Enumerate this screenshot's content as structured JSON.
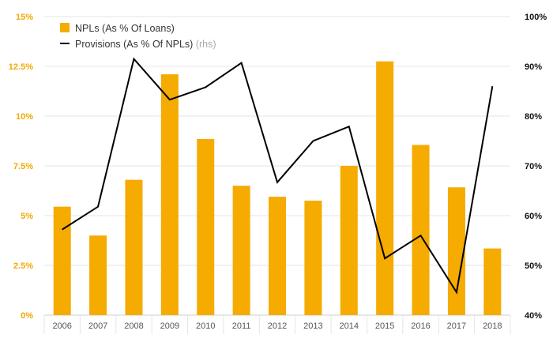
{
  "chart_data": {
    "type": "bar",
    "categories": [
      "2006",
      "2007",
      "2008",
      "2009",
      "2010",
      "2011",
      "2012",
      "2013",
      "2014",
      "2015",
      "2016",
      "2017",
      "2018"
    ],
    "series": [
      {
        "name": "NPLs (As % Of Loans)",
        "type": "bar",
        "axis": "left",
        "color": "#f5ab00",
        "values": [
          5.45,
          4.0,
          6.8,
          12.1,
          8.85,
          6.5,
          5.95,
          5.75,
          7.5,
          12.75,
          8.55,
          6.42,
          3.35
        ]
      },
      {
        "name": "Provisions (As % Of NPLs)",
        "name_suffix": "(rhs)",
        "type": "line",
        "axis": "right",
        "color": "#000000",
        "values": [
          57.2,
          61.8,
          91.5,
          83.3,
          85.8,
          90.7,
          66.7,
          75.0,
          77.9,
          51.4,
          56.0,
          44.6,
          86.0
        ]
      }
    ],
    "y_left": {
      "ylim": [
        0,
        15
      ],
      "ticks": [
        0,
        2.5,
        5,
        7.5,
        10,
        12.5,
        15
      ],
      "tick_labels": [
        "0%",
        "2.5%",
        "5%",
        "7.5%",
        "10%",
        "12.5%",
        "15%"
      ],
      "color": "#f2a900"
    },
    "y_right": {
      "ylim": [
        40,
        100
      ],
      "ticks": [
        40,
        50,
        60,
        70,
        80,
        90,
        100
      ],
      "tick_labels": [
        "40%",
        "50%",
        "60%",
        "70%",
        "80%",
        "90%",
        "100%"
      ],
      "color": "#111111"
    },
    "grid": true,
    "legend_position": "top-left"
  }
}
